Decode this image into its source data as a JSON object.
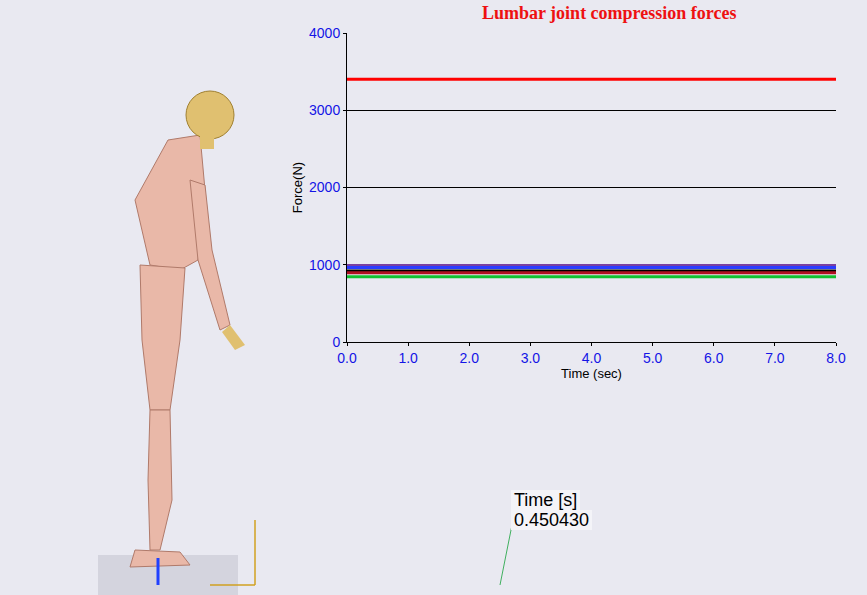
{
  "chart_data": {
    "type": "line",
    "title": "Lumbar joint compression forces",
    "x_label": "Time (sec)",
    "y_label": "Force(N)",
    "x": [
      0,
      8
    ],
    "series": [
      {
        "color": "#ff0000",
        "values": [
          3400,
          3400
        ]
      },
      {
        "color": "#7a3fa0",
        "values": [
          990,
          990
        ]
      },
      {
        "color": "#2a3cff",
        "values": [
          965,
          965
        ]
      },
      {
        "color": "#000000",
        "values": [
          920,
          920
        ]
      },
      {
        "color": "#b01020",
        "values": [
          895,
          895
        ]
      },
      {
        "color": "#12c030",
        "values": [
          845,
          845
        ]
      }
    ],
    "xlim": [
      0,
      8
    ],
    "xticks": [
      {
        "value": 0,
        "label": "0.0"
      },
      {
        "value": 1,
        "label": "1.0"
      },
      {
        "value": 2,
        "label": "2.0"
      },
      {
        "value": 3,
        "label": "3.0"
      },
      {
        "value": 4,
        "label": "4.0"
      },
      {
        "value": 5,
        "label": "5.0"
      },
      {
        "value": 6,
        "label": "6.0"
      },
      {
        "value": 7,
        "label": "7.0"
      },
      {
        "value": 8,
        "label": "8.0"
      }
    ],
    "ylim": [
      0,
      4000
    ],
    "yticks": [
      0,
      1000,
      2000,
      3000,
      4000
    ],
    "grid": true
  },
  "time_display": {
    "label": "Time [s]",
    "value": "0.450430"
  }
}
